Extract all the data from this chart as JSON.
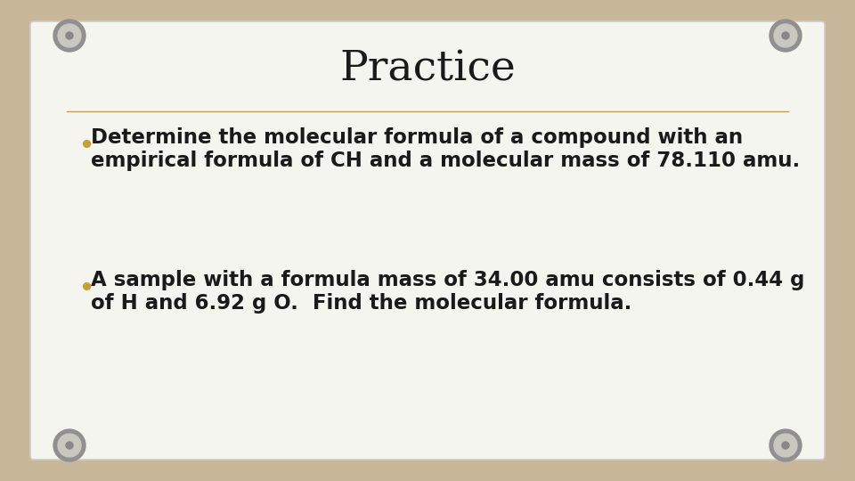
{
  "title": "Practice",
  "title_fontsize": 34,
  "bullet1_line1": "Determine the molecular formula of a compound with an",
  "bullet1_line2": "empirical formula of CH and a molecular mass of 78.110 amu.",
  "bullet2_line1": "A sample with a formula mass of 34.00 amu consists of 0.44 g",
  "bullet2_line2": "of H and 6.92 g O.  Find the molecular formula.",
  "bullet_color": "#c8a030",
  "text_color": "#1a1a1a",
  "bg_outer": "#c8b89a",
  "bg_card": "#f5f5f0",
  "card_edge_color": "#cccccc",
  "separator_color": "#c8a030",
  "body_fontsize": 16.5,
  "screw_outer": "#909090",
  "screw_mid": "#c8c8c0",
  "screw_inner": "#888888"
}
